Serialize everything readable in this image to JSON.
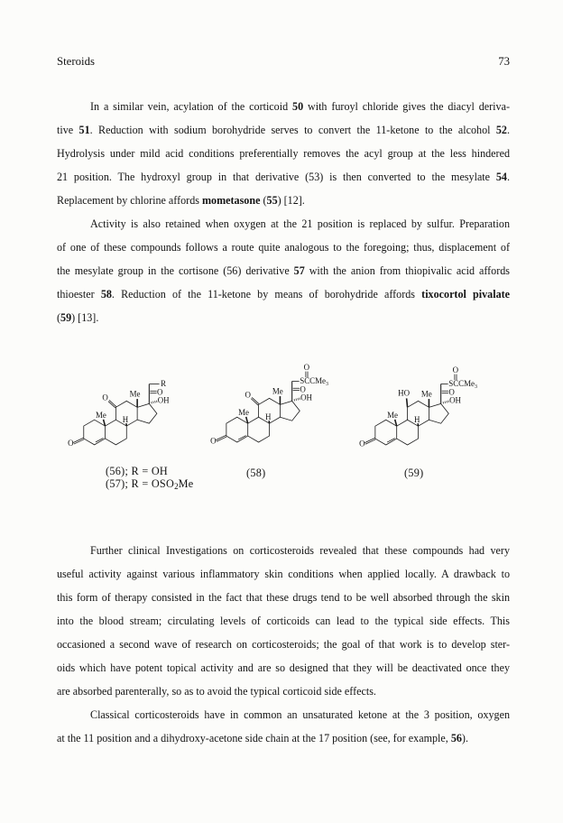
{
  "header": {
    "title": "Steroids",
    "page_number": "73"
  },
  "paragraphs_top": [
    {
      "lines": [
        [
          {
            "t": "In a similar vein, acylation of the corticoid "
          },
          {
            "t": "50",
            "b": true
          },
          {
            "t": " with furoyl chloride gives the diacyl deriva-"
          }
        ],
        [
          {
            "t": "tive "
          },
          {
            "t": "51",
            "b": true
          },
          {
            "t": ". Reduction with sodium borohydride serves to convert the 11-ketone to the alcohol "
          },
          {
            "t": "52",
            "b": true
          },
          {
            "t": "."
          }
        ],
        [
          {
            "t": "Hydrolysis under mild acid conditions preferentially removes the acyl group at the less hindered"
          }
        ],
        [
          {
            "t": "21 position. The hydroxyl group in that derivative (53) is then converted to the mesylate "
          },
          {
            "t": "54",
            "b": true
          },
          {
            "t": "."
          }
        ],
        [
          {
            "t": "Replacement by chlorine affords "
          },
          {
            "t": "mometasone",
            "b": true
          },
          {
            "t": " ("
          },
          {
            "t": "55",
            "b": true
          },
          {
            "t": ") [12]."
          }
        ]
      ]
    },
    {
      "lines": [
        [
          {
            "t": "Activity is also retained when oxygen at the 21 position is replaced by sulfur.  Preparation"
          }
        ],
        [
          {
            "t": "of one of these compounds follows a route quite analogous to the foregoing; thus, displacement of"
          }
        ],
        [
          {
            "t": "the mesylate group in the cortisone (56) derivative "
          },
          {
            "t": "57",
            "b": true
          },
          {
            "t": " with the anion from thiopivalic acid affords"
          }
        ],
        [
          {
            "t": "thioester "
          },
          {
            "t": "58",
            "b": true
          },
          {
            "t": ".  Reduction of the 11-ketone by means of borohydride affords "
          },
          {
            "t": "tixocortol pivalate",
            "b": true
          }
        ],
        [
          {
            "t": "("
          },
          {
            "t": "59",
            "b": true
          },
          {
            "t": ") [13]."
          }
        ]
      ]
    }
  ],
  "paragraphs_bottom": [
    {
      "lines": [
        [
          {
            "t": "Further clinical Investigations on corticosteroids revealed that these compounds had very"
          }
        ],
        [
          {
            "t": "useful activity against various inflammatory skin conditions when applied locally.  A drawback to"
          }
        ],
        [
          {
            "t": "this form of therapy consisted in the fact that these drugs tend to be well absorbed through the skin"
          }
        ],
        [
          {
            "t": "into the blood stream; circulating levels of corticoids can lead to the typical side effects.  This"
          }
        ],
        [
          {
            "t": "occasioned a second wave of research on corticosteroids; the goal of that work is to develop ster-"
          }
        ],
        [
          {
            "t": "oids which have potent topical activity and are so designed that they will be deactivated once they"
          }
        ],
        [
          {
            "t": "are absorbed parenterally, so as to avoid the typical corticoid side effects."
          }
        ]
      ]
    },
    {
      "lines": [
        [
          {
            "t": "Classical corticosteroids have in common an unsaturated ketone at the 3 position, oxygen"
          }
        ],
        [
          {
            "t": "at the 11 position and a dihydroxy-acetone side chain at the 17 position (see, for example, "
          },
          {
            "t": "56",
            "b": true
          },
          {
            "t": ")."
          }
        ]
      ]
    }
  ],
  "structures": {
    "atoms": {
      "o": "O",
      "me": "Me",
      "h": "H",
      "oh": "OH",
      "ho": "HO",
      "r": "R",
      "sccme": "SCCMe",
      "sub3": "3"
    },
    "captions": {
      "s1": [
        [
          {
            "t": "(56); R = OH"
          }
        ],
        [
          {
            "t": "(57); R = OSO"
          },
          {
            "t": "2",
            "sub": true
          },
          {
            "t": "Me"
          }
        ]
      ],
      "s2": "(58)",
      "s3": "(59)"
    }
  }
}
